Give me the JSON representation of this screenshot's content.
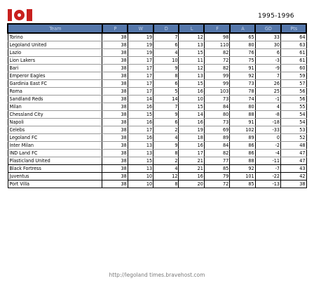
{
  "header": {
    "logo_text": "lol",
    "season": "1995-1996"
  },
  "table": {
    "columns": [
      "Team",
      "P",
      "W",
      "D",
      "L",
      "F",
      "A",
      "GD",
      "Pts"
    ],
    "rows": [
      [
        "Torino",
        "38",
        "19",
        "7",
        "12",
        "98",
        "65",
        "33",
        "64"
      ],
      [
        "Legoland United",
        "38",
        "19",
        "6",
        "13",
        "110",
        "80",
        "30",
        "63"
      ],
      [
        "Lazio",
        "38",
        "19",
        "4",
        "15",
        "82",
        "76",
        "6",
        "61"
      ],
      [
        "Lion Lakers",
        "38",
        "17",
        "10",
        "11",
        "72",
        "75",
        "-3",
        "61"
      ],
      [
        "Bari",
        "38",
        "17",
        "9",
        "12",
        "82",
        "91",
        "-9",
        "60"
      ],
      [
        "Emperor Eagles",
        "38",
        "17",
        "8",
        "13",
        "99",
        "92",
        "7",
        "59"
      ],
      [
        "Gardinia East FC",
        "38",
        "17",
        "6",
        "15",
        "99",
        "73",
        "26",
        "57"
      ],
      [
        "Roma",
        "38",
        "17",
        "5",
        "16",
        "103",
        "78",
        "25",
        "56"
      ],
      [
        "Sandland Reds",
        "38",
        "14",
        "14",
        "10",
        "73",
        "74",
        "-1",
        "56"
      ],
      [
        "Milan",
        "38",
        "16",
        "7",
        "15",
        "84",
        "80",
        "4",
        "55"
      ],
      [
        "Chessland City",
        "38",
        "15",
        "9",
        "14",
        "80",
        "88",
        "-8",
        "54"
      ],
      [
        "Napoli",
        "38",
        "16",
        "6",
        "16",
        "73",
        "91",
        "-18",
        "54"
      ],
      [
        "Celebs",
        "38",
        "17",
        "2",
        "19",
        "69",
        "102",
        "-33",
        "53"
      ],
      [
        "Legoland FC",
        "38",
        "16",
        "4",
        "18",
        "89",
        "89",
        "0",
        "52"
      ],
      [
        "Inter Milan",
        "38",
        "13",
        "9",
        "16",
        "84",
        "86",
        "-2",
        "48"
      ],
      [
        "IND Land FC",
        "38",
        "13",
        "8",
        "17",
        "82",
        "86",
        "-4",
        "47"
      ],
      [
        "Plasticland United",
        "38",
        "15",
        "2",
        "21",
        "77",
        "88",
        "-11",
        "47"
      ],
      [
        "Black Fortress",
        "38",
        "13",
        "4",
        "21",
        "85",
        "92",
        "-7",
        "43"
      ],
      [
        "Juventus",
        "38",
        "10",
        "12",
        "16",
        "79",
        "101",
        "-22",
        "42"
      ],
      [
        "Port Villa",
        "38",
        "10",
        "8",
        "20",
        "72",
        "85",
        "-13",
        "38"
      ]
    ]
  },
  "footer": {
    "url": "http://legoland times.bravehost.com"
  }
}
